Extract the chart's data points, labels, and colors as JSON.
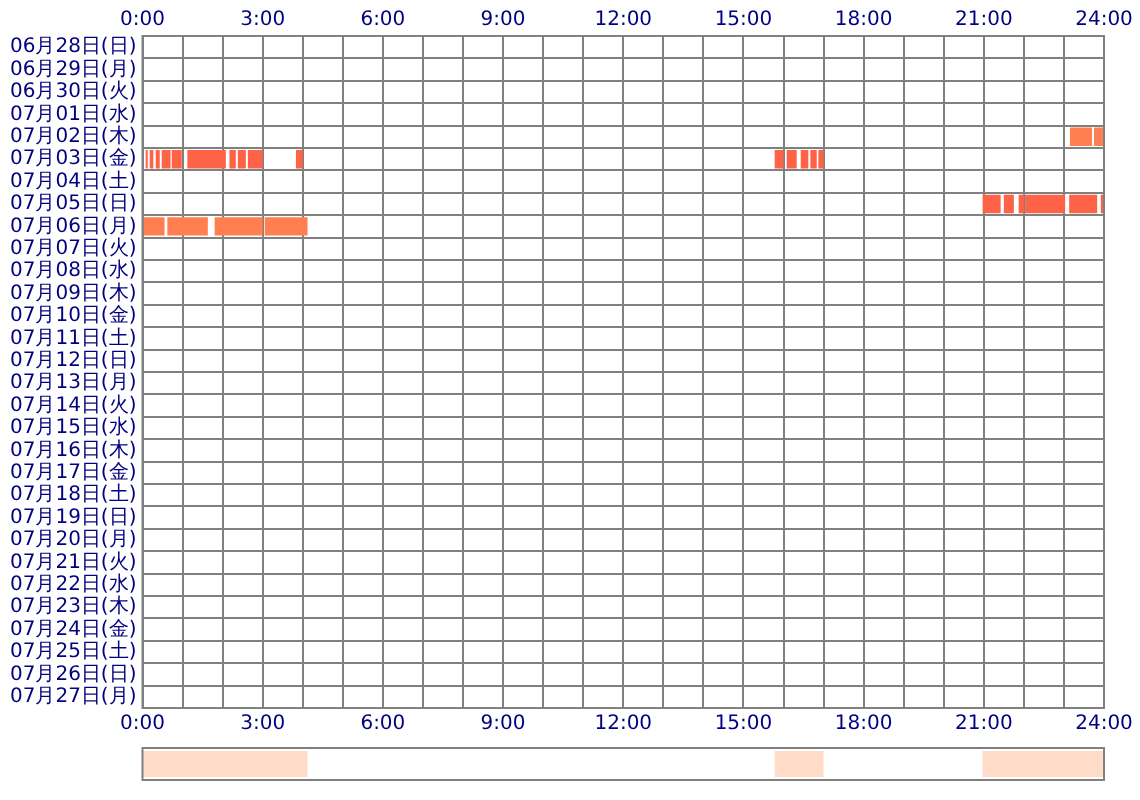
{
  "chart_data": [
    {
      "type": "bar",
      "orientation": "horizontal",
      "categories": [
        "06月28日(日)",
        "06月29日(月)",
        "06月30日(火)",
        "07月01日(水)",
        "07月02日(木)",
        "07月03日(金)",
        "07月04日(土)",
        "07月05日(日)",
        "07月06日(月)",
        "07月07日(火)",
        "07月08日(水)",
        "07月09日(木)",
        "07月10日(金)",
        "07月11日(土)",
        "07月12日(日)",
        "07月13日(月)",
        "07月14日(火)",
        "07月15日(水)",
        "07月16日(木)",
        "07月17日(金)",
        "07月18日(土)",
        "07月19日(日)",
        "07月20日(月)",
        "07月21日(火)",
        "07月22日(水)",
        "07月23日(木)",
        "07月24日(金)",
        "07月25日(土)",
        "07月26日(日)",
        "07月27日(月)"
      ],
      "series": [
        {
          "color": "#ff6347",
          "base": [
            null,
            null,
            null,
            null,
            null,
            0.08,
            null,
            20.97,
            null,
            null,
            null,
            null,
            null,
            null,
            null,
            null,
            null,
            null,
            null,
            null,
            null,
            null,
            null,
            null,
            null,
            null,
            null,
            null,
            null,
            null
          ],
          "values": [
            null,
            null,
            null,
            null,
            null,
            0.05,
            null,
            0.45,
            null,
            null,
            null,
            null,
            null,
            null,
            null,
            null,
            null,
            null,
            null,
            null,
            null,
            null,
            null,
            null,
            null,
            null,
            null,
            null,
            null,
            null
          ]
        },
        {
          "color": "#ff6347",
          "base": [
            null,
            null,
            null,
            null,
            null,
            0.18,
            null,
            21.5,
            null,
            null,
            null,
            null,
            null,
            null,
            null,
            null,
            null,
            null,
            null,
            null,
            null,
            null,
            null,
            null,
            null,
            null,
            null,
            null,
            null,
            null
          ],
          "values": [
            null,
            null,
            null,
            null,
            null,
            0.09,
            null,
            0.25,
            null,
            null,
            null,
            null,
            null,
            null,
            null,
            null,
            null,
            null,
            null,
            null,
            null,
            null,
            null,
            null,
            null,
            null,
            null,
            null,
            null,
            null
          ]
        },
        {
          "color": "#ff6347",
          "base": [
            null,
            null,
            null,
            null,
            null,
            0.33,
            null,
            21.87,
            null,
            null,
            null,
            null,
            null,
            null,
            null,
            null,
            null,
            null,
            null,
            null,
            null,
            null,
            null,
            null,
            null,
            null,
            null,
            null,
            null,
            null
          ],
          "values": [
            null,
            null,
            null,
            null,
            null,
            0.1,
            null,
            0.13,
            null,
            null,
            null,
            null,
            null,
            null,
            null,
            null,
            null,
            null,
            null,
            null,
            null,
            null,
            null,
            null,
            null,
            null,
            null,
            null,
            null,
            null
          ]
        },
        {
          "color": "#ff6347",
          "base": [
            null,
            null,
            null,
            null,
            null,
            0.48,
            null,
            22.03,
            null,
            null,
            null,
            null,
            null,
            null,
            null,
            null,
            null,
            null,
            null,
            null,
            null,
            null,
            null,
            null,
            null,
            null,
            null,
            null,
            null,
            null
          ],
          "values": [
            null,
            null,
            null,
            null,
            null,
            0.22,
            null,
            1.0,
            null,
            null,
            null,
            null,
            null,
            null,
            null,
            null,
            null,
            null,
            null,
            null,
            null,
            null,
            null,
            null,
            null,
            null,
            null,
            null,
            null,
            null
          ]
        },
        {
          "color": "#ff6347",
          "base": [
            null,
            null,
            null,
            null,
            null,
            0.73,
            null,
            23.13,
            null,
            null,
            null,
            null,
            null,
            null,
            null,
            null,
            null,
            null,
            null,
            null,
            null,
            null,
            null,
            null,
            null,
            null,
            null,
            null,
            null,
            null
          ],
          "values": [
            null,
            null,
            null,
            null,
            null,
            0.25,
            null,
            0.7,
            null,
            null,
            null,
            null,
            null,
            null,
            null,
            null,
            null,
            null,
            null,
            null,
            null,
            null,
            null,
            null,
            null,
            null,
            null,
            null,
            null,
            null
          ]
        },
        {
          "color": "#ff6347",
          "base": [
            null,
            null,
            null,
            null,
            null,
            1.12,
            null,
            23.92,
            null,
            null,
            null,
            null,
            null,
            null,
            null,
            null,
            null,
            null,
            null,
            null,
            null,
            null,
            null,
            null,
            null,
            null,
            null,
            null,
            null,
            null
          ],
          "values": [
            null,
            null,
            null,
            null,
            null,
            0.96,
            null,
            0.08,
            null,
            null,
            null,
            null,
            null,
            null,
            null,
            null,
            null,
            null,
            null,
            null,
            null,
            null,
            null,
            null,
            null,
            null,
            null,
            null,
            null,
            null
          ]
        },
        {
          "color": "#ff6347",
          "base": [
            null,
            null,
            null,
            null,
            null,
            2.17,
            null,
            null,
            null,
            null,
            null,
            null,
            null,
            null,
            null,
            null,
            null,
            null,
            null,
            null,
            null,
            null,
            null,
            null,
            null,
            null,
            null,
            null,
            null,
            null
          ],
          "values": [
            null,
            null,
            null,
            null,
            null,
            0.16,
            null,
            null,
            null,
            null,
            null,
            null,
            null,
            null,
            null,
            null,
            null,
            null,
            null,
            null,
            null,
            null,
            null,
            null,
            null,
            null,
            null,
            null,
            null,
            null
          ]
        },
        {
          "color": "#ff6347",
          "base": [
            null,
            null,
            null,
            null,
            null,
            2.38,
            null,
            null,
            null,
            null,
            null,
            null,
            null,
            null,
            null,
            null,
            null,
            null,
            null,
            null,
            null,
            null,
            null,
            null,
            null,
            null,
            null,
            null,
            null,
            null
          ],
          "values": [
            null,
            null,
            null,
            null,
            null,
            0.2,
            null,
            null,
            null,
            null,
            null,
            null,
            null,
            null,
            null,
            null,
            null,
            null,
            null,
            null,
            null,
            null,
            null,
            null,
            null,
            null,
            null,
            null,
            null,
            null
          ]
        },
        {
          "color": "#ff6347",
          "base": [
            null,
            null,
            null,
            null,
            null,
            2.63,
            null,
            null,
            null,
            null,
            null,
            null,
            null,
            null,
            null,
            null,
            null,
            null,
            null,
            null,
            null,
            null,
            null,
            null,
            null,
            null,
            null,
            null,
            null,
            null
          ],
          "values": [
            null,
            null,
            null,
            null,
            null,
            0.37,
            null,
            null,
            null,
            null,
            null,
            null,
            null,
            null,
            null,
            null,
            null,
            null,
            null,
            null,
            null,
            null,
            null,
            null,
            null,
            null,
            null,
            null,
            null,
            null
          ]
        },
        {
          "color": "#ff6347",
          "base": [
            null,
            null,
            null,
            null,
            null,
            3.83,
            null,
            null,
            null,
            null,
            null,
            null,
            null,
            null,
            null,
            null,
            null,
            null,
            null,
            null,
            null,
            null,
            null,
            null,
            null,
            null,
            null,
            null,
            null,
            null
          ],
          "values": [
            null,
            null,
            null,
            null,
            null,
            0.17,
            null,
            null,
            null,
            null,
            null,
            null,
            null,
            null,
            null,
            null,
            null,
            null,
            null,
            null,
            null,
            null,
            null,
            null,
            null,
            null,
            null,
            null,
            null,
            null
          ]
        },
        {
          "color": "#ff6347",
          "base": [
            null,
            null,
            null,
            null,
            null,
            15.78,
            null,
            null,
            null,
            null,
            null,
            null,
            null,
            null,
            null,
            null,
            null,
            null,
            null,
            null,
            null,
            null,
            null,
            null,
            null,
            null,
            null,
            null,
            null,
            null
          ],
          "values": [
            null,
            null,
            null,
            null,
            null,
            0.22,
            null,
            null,
            null,
            null,
            null,
            null,
            null,
            null,
            null,
            null,
            null,
            null,
            null,
            null,
            null,
            null,
            null,
            null,
            null,
            null,
            null,
            null,
            null,
            null
          ]
        },
        {
          "color": "#ff6347",
          "base": [
            null,
            null,
            null,
            null,
            null,
            16.08,
            null,
            null,
            null,
            null,
            null,
            null,
            null,
            null,
            null,
            null,
            null,
            null,
            null,
            null,
            null,
            null,
            null,
            null,
            null,
            null,
            null,
            null,
            null,
            null
          ],
          "values": [
            null,
            null,
            null,
            null,
            null,
            0.25,
            null,
            null,
            null,
            null,
            null,
            null,
            null,
            null,
            null,
            null,
            null,
            null,
            null,
            null,
            null,
            null,
            null,
            null,
            null,
            null,
            null,
            null,
            null,
            null
          ]
        },
        {
          "color": "#ff6347",
          "base": [
            null,
            null,
            null,
            null,
            null,
            16.43,
            null,
            null,
            null,
            null,
            null,
            null,
            null,
            null,
            null,
            null,
            null,
            null,
            null,
            null,
            null,
            null,
            null,
            null,
            null,
            null,
            null,
            null,
            null,
            null
          ],
          "values": [
            null,
            null,
            null,
            null,
            null,
            0.19,
            null,
            null,
            null,
            null,
            null,
            null,
            null,
            null,
            null,
            null,
            null,
            null,
            null,
            null,
            null,
            null,
            null,
            null,
            null,
            null,
            null,
            null,
            null,
            null
          ]
        },
        {
          "color": "#ff6347",
          "base": [
            null,
            null,
            null,
            null,
            null,
            16.67,
            null,
            null,
            null,
            null,
            null,
            null,
            null,
            null,
            null,
            null,
            null,
            null,
            null,
            null,
            null,
            null,
            null,
            null,
            null,
            null,
            null,
            null,
            null,
            null
          ],
          "values": [
            null,
            null,
            null,
            null,
            null,
            0.16,
            null,
            null,
            null,
            null,
            null,
            null,
            null,
            null,
            null,
            null,
            null,
            null,
            null,
            null,
            null,
            null,
            null,
            null,
            null,
            null,
            null,
            null,
            null,
            null
          ]
        },
        {
          "color": "#ff6347",
          "base": [
            null,
            null,
            null,
            null,
            null,
            16.87,
            null,
            null,
            null,
            null,
            null,
            null,
            null,
            null,
            null,
            null,
            null,
            null,
            null,
            null,
            null,
            null,
            null,
            null,
            null,
            null,
            null,
            null,
            null,
            null
          ],
          "values": [
            null,
            null,
            null,
            null,
            null,
            0.13,
            null,
            null,
            null,
            null,
            null,
            null,
            null,
            null,
            null,
            null,
            null,
            null,
            null,
            null,
            null,
            null,
            null,
            null,
            null,
            null,
            null,
            null,
            null,
            null
          ]
        },
        {
          "color": "#ff7f50",
          "base": [
            null,
            null,
            null,
            null,
            23.15,
            null,
            null,
            null,
            0.03,
            null,
            null,
            null,
            null,
            null,
            null,
            null,
            null,
            null,
            null,
            null,
            null,
            null,
            null,
            null,
            null,
            null,
            null,
            null,
            null,
            null
          ],
          "values": [
            null,
            null,
            null,
            null,
            0.55,
            null,
            null,
            null,
            0.52,
            null,
            null,
            null,
            null,
            null,
            null,
            null,
            null,
            null,
            null,
            null,
            null,
            null,
            null,
            null,
            null,
            null,
            null,
            null,
            null,
            null
          ]
        },
        {
          "color": "#ff7f50",
          "base": [
            null,
            null,
            null,
            null,
            23.75,
            null,
            null,
            null,
            0.62,
            null,
            null,
            null,
            null,
            null,
            null,
            null,
            null,
            null,
            null,
            null,
            null,
            null,
            null,
            null,
            null,
            null,
            null,
            null,
            null,
            null
          ],
          "values": [
            null,
            null,
            null,
            null,
            0.25,
            null,
            null,
            null,
            1.01,
            null,
            null,
            null,
            null,
            null,
            null,
            null,
            null,
            null,
            null,
            null,
            null,
            null,
            null,
            null,
            null,
            null,
            null,
            null,
            null,
            null
          ]
        },
        {
          "color": "#ff7f50",
          "base": [
            null,
            null,
            null,
            null,
            null,
            null,
            null,
            null,
            1.8,
            null,
            null,
            null,
            null,
            null,
            null,
            null,
            null,
            null,
            null,
            null,
            null,
            null,
            null,
            null,
            null,
            null,
            null,
            null,
            null,
            null
          ],
          "values": [
            null,
            null,
            null,
            null,
            null,
            null,
            null,
            null,
            1.2,
            null,
            null,
            null,
            null,
            null,
            null,
            null,
            null,
            null,
            null,
            null,
            null,
            null,
            null,
            null,
            null,
            null,
            null,
            null,
            null,
            null
          ]
        },
        {
          "color": "#ff7f50",
          "base": [
            null,
            null,
            null,
            null,
            null,
            null,
            null,
            null,
            3.05,
            null,
            null,
            null,
            null,
            null,
            null,
            null,
            null,
            null,
            null,
            null,
            null,
            null,
            null,
            null,
            null,
            null,
            null,
            null,
            null,
            null
          ],
          "values": [
            null,
            null,
            null,
            null,
            null,
            null,
            null,
            null,
            1.07,
            null,
            null,
            null,
            null,
            null,
            null,
            null,
            null,
            null,
            null,
            null,
            null,
            null,
            null,
            null,
            null,
            null,
            null,
            null,
            null,
            null
          ]
        }
      ],
      "xlim": [
        0,
        24
      ],
      "xticks": [
        {
          "value": 0,
          "label": "0:00"
        },
        {
          "value": 1,
          "label": null
        },
        {
          "value": 2,
          "label": null
        },
        {
          "value": 3,
          "label": "3:00"
        },
        {
          "value": 4,
          "label": null
        },
        {
          "value": 5,
          "label": null
        },
        {
          "value": 6,
          "label": "6:00"
        },
        {
          "value": 7,
          "label": null
        },
        {
          "value": 8,
          "label": null
        },
        {
          "value": 9,
          "label": "9:00"
        },
        {
          "value": 10,
          "label": null
        },
        {
          "value": 11,
          "label": null
        },
        {
          "value": 12,
          "label": "12:00"
        },
        {
          "value": 13,
          "label": null
        },
        {
          "value": 14,
          "label": null
        },
        {
          "value": 15,
          "label": "15:00"
        },
        {
          "value": 16,
          "label": null
        },
        {
          "value": 17,
          "label": null
        },
        {
          "value": 18,
          "label": "18:00"
        },
        {
          "value": 19,
          "label": null
        },
        {
          "value": 20,
          "label": null
        },
        {
          "value": 21,
          "label": "21:00"
        },
        {
          "value": 22,
          "label": null
        },
        {
          "value": 23,
          "label": null
        },
        {
          "value": 24,
          "label": "24:00"
        }
      ],
      "x2lim": [
        0,
        24
      ],
      "x2ticks": [
        {
          "value": 0,
          "label": "0:00"
        },
        {
          "value": 1,
          "label": null
        },
        {
          "value": 2,
          "label": null
        },
        {
          "value": 3,
          "label": "3:00"
        },
        {
          "value": 4,
          "label": null
        },
        {
          "value": 5,
          "label": null
        },
        {
          "value": 6,
          "label": "6:00"
        },
        {
          "value": 7,
          "label": null
        },
        {
          "value": 8,
          "label": null
        },
        {
          "value": 9,
          "label": "9:00"
        },
        {
          "value": 10,
          "label": null
        },
        {
          "value": 11,
          "label": null
        },
        {
          "value": 12,
          "label": "12:00"
        },
        {
          "value": 13,
          "label": null
        },
        {
          "value": 14,
          "label": null
        },
        {
          "value": 15,
          "label": "15:00"
        },
        {
          "value": 16,
          "label": null
        },
        {
          "value": 17,
          "label": null
        },
        {
          "value": 18,
          "label": "18:00"
        },
        {
          "value": 19,
          "label": null
        },
        {
          "value": 20,
          "label": null
        },
        {
          "value": 21,
          "label": "21:00"
        },
        {
          "value": 22,
          "label": null
        },
        {
          "value": 23,
          "label": null
        },
        {
          "value": 24,
          "label": "24:00"
        }
      ],
      "grid": true
    },
    {
      "type": "bar",
      "orientation": "horizontal",
      "categories": [
        null
      ],
      "series": [
        {
          "color": "#ffdcc8",
          "base": [
            0
          ],
          "values": [
            4.12
          ]
        },
        {
          "color": "#ffdcc8",
          "base": [
            15.78
          ],
          "values": [
            1.22
          ]
        },
        {
          "color": "#ffdcc8",
          "base": [
            20.97
          ],
          "values": [
            3.03
          ]
        }
      ],
      "xlim": [
        0,
        24
      ],
      "tick_labels": false
    }
  ]
}
